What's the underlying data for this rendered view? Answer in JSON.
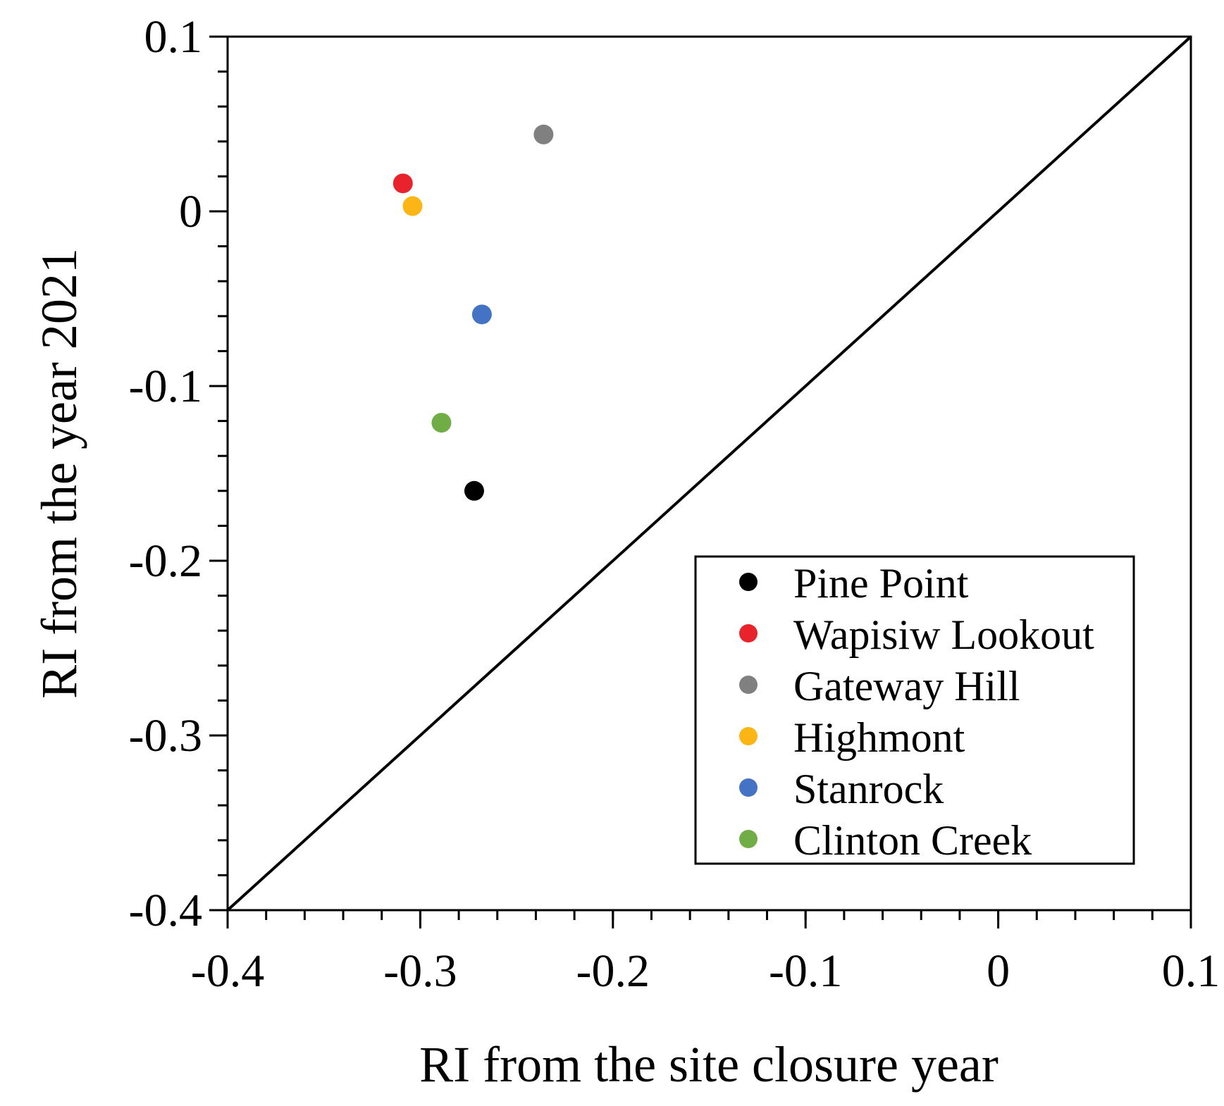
{
  "chart_data": {
    "type": "scatter",
    "xlabel": "RI from the site closure year",
    "ylabel": "RI from the year 2021",
    "xlim": [
      -0.4,
      0.1
    ],
    "ylim": [
      -0.4,
      0.1
    ],
    "x_ticks": [
      "-0.4",
      "-0.3",
      "-0.2",
      "-0.1",
      "0",
      "0.1"
    ],
    "y_ticks": [
      "-0.4",
      "-0.3",
      "-0.2",
      "-0.1",
      "0",
      "0.1"
    ],
    "grid": false,
    "reference_line": "y = x",
    "legend_position": "bottom-right",
    "series": [
      {
        "name": "Pine Point",
        "color": "#000000",
        "x": [
          -0.272
        ],
        "y": [
          -0.16
        ]
      },
      {
        "name": "Wapisiw Lookout",
        "color": "#e8232b",
        "x": [
          -0.309
        ],
        "y": [
          0.016
        ]
      },
      {
        "name": "Gateway Hill",
        "color": "#808080",
        "x": [
          -0.236
        ],
        "y": [
          0.044
        ]
      },
      {
        "name": "Highmont",
        "color": "#fbb615",
        "x": [
          -0.304
        ],
        "y": [
          0.003
        ]
      },
      {
        "name": "Stanrock",
        "color": "#4472c4",
        "x": [
          -0.268
        ],
        "y": [
          -0.059
        ]
      },
      {
        "name": "Clinton Creek",
        "color": "#70ad47",
        "x": [
          -0.289
        ],
        "y": [
          -0.121
        ]
      }
    ]
  }
}
